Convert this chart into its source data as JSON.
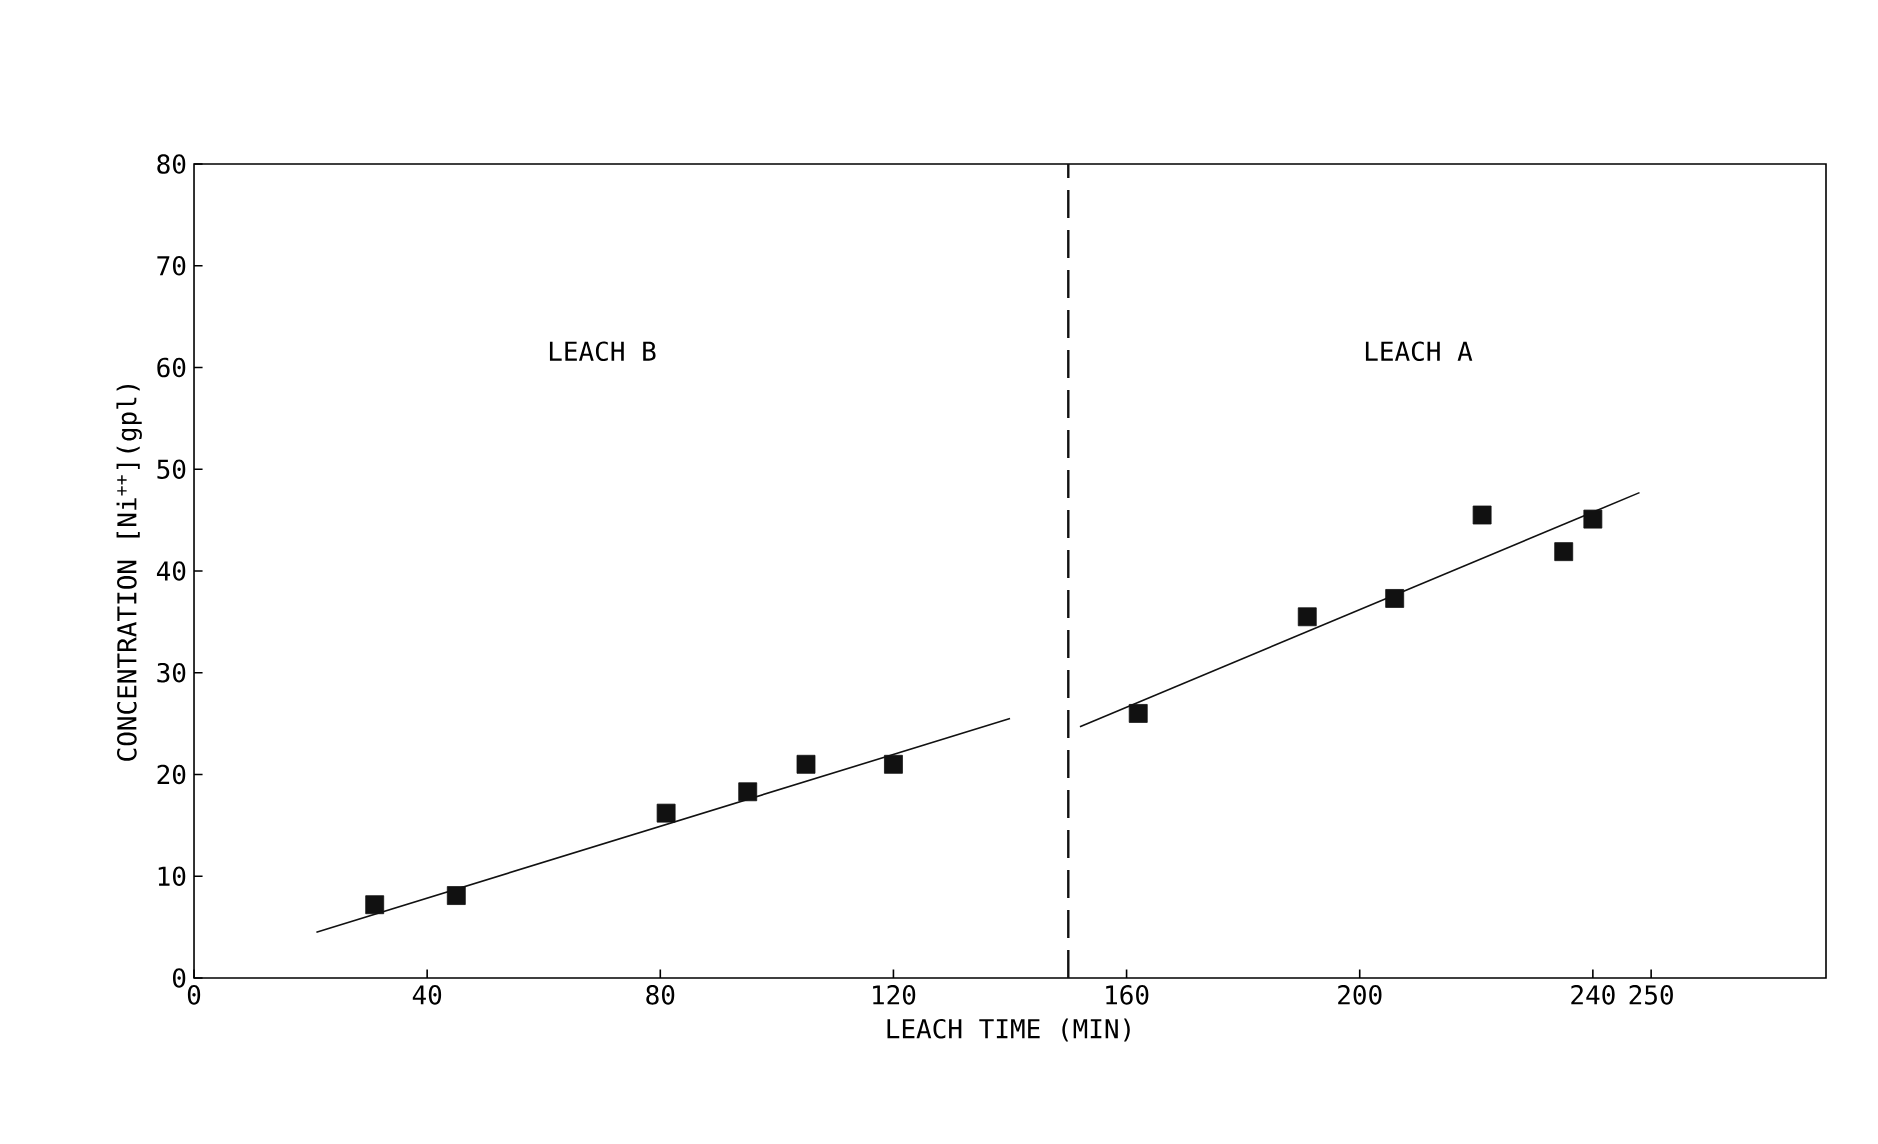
{
  "chart_data": {
    "type": "scatter",
    "xlabel": "LEACH TIME (MIN)",
    "ylabel": "CONCENTRATION [Ni$^{++}$](gpl)",
    "xlim": [
      0,
      280
    ],
    "ylim": [
      0,
      80
    ],
    "xticks": [
      0,
      40,
      80,
      120,
      160,
      200,
      240,
      250
    ],
    "yticks": [
      0,
      10,
      20,
      30,
      40,
      50,
      60,
      70,
      80
    ],
    "marker": "square",
    "grid": false,
    "series": [
      {
        "color": "#111111",
        "x": [
          31,
          45,
          81,
          95,
          105,
          120
        ],
        "values": [
          7.2,
          8.1,
          16.2,
          18.3,
          21,
          21
        ]
      },
      {
        "color": "#111111",
        "x": [
          162,
          191,
          206,
          221,
          235,
          240
        ],
        "values": [
          26,
          35.5,
          37.3,
          45.5,
          41.9,
          45.1
        ]
      },
      {
        "type": "line",
        "marker": "none",
        "color": "#111111",
        "x": [
          21,
          140
        ],
        "values": [
          4.5,
          25.5
        ]
      },
      {
        "type": "line",
        "marker": "none",
        "color": "#111111",
        "x": [
          152,
          248
        ],
        "values": [
          24.7,
          47.7
        ]
      }
    ],
    "ref_lines": [
      {
        "axis": "x",
        "value": 150,
        "line_style": "dashed",
        "color": "#111111"
      }
    ],
    "annotations": [
      "LEACH B",
      "LEACH A"
    ]
  }
}
